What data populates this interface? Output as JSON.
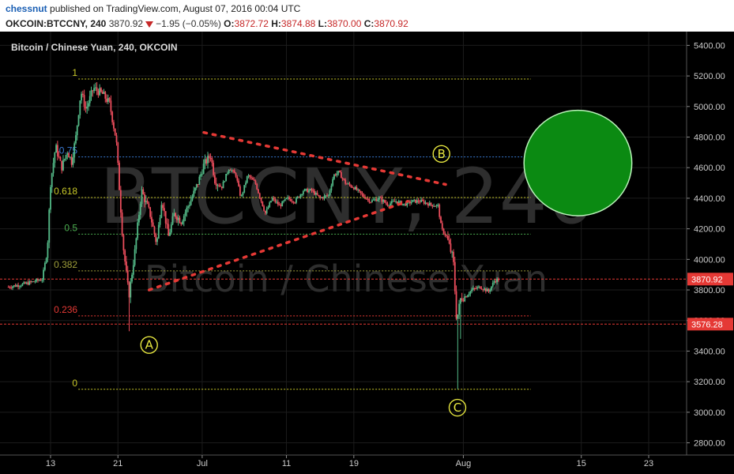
{
  "header": {
    "author": "chessnut",
    "published_text": "published on TradingView.com, August 07, 2016 00:04 UTC"
  },
  "infobar": {
    "symbol": "OKCOIN:BTCCNY, 240",
    "last": "3870.92",
    "change": "−1.95 (−0.05%)",
    "open_label": "O:",
    "open": "3872.72",
    "high_label": "H:",
    "high": "3874.88",
    "low_label": "L:",
    "low": "3870.00",
    "close_label": "C:",
    "close": "3870.92"
  },
  "chart_data": {
    "type": "candlestick",
    "title": "Bitcoin / Chinese Yuan, 240, OKCOIN",
    "watermark_symbol": "BTCCNY, 240",
    "watermark_name": "Bitcoin / Chinese Yuan",
    "ylim": [
      2720,
      5490
    ],
    "y_ticks": [
      "5400.00",
      "5200.00",
      "5000.00",
      "4800.00",
      "4600.00",
      "4400.00",
      "4200.00",
      "4000.00",
      "3800.00",
      "3600.00",
      "3400.00",
      "3200.00",
      "3000.00",
      "2800.00"
    ],
    "x_ticks": [
      {
        "label": "13",
        "day": 13
      },
      {
        "label": "21",
        "day": 21
      },
      {
        "label": "Jul",
        "day": 31
      },
      {
        "label": "11",
        "day": 41
      },
      {
        "label": "19",
        "day": 49
      },
      {
        "label": "Aug",
        "day": 62
      },
      {
        "label": "15",
        "day": 76
      },
      {
        "label": "23",
        "day": 84
      }
    ],
    "x_range_days": [
      7.0,
      88.5
    ],
    "price_labels": [
      {
        "text": "3870.92",
        "value": 3870.92,
        "color": "#e53935"
      },
      {
        "text": "3576.28",
        "value": 3576.28,
        "color": "#e53935"
      }
    ],
    "fib_levels": [
      {
        "label": "1",
        "value": 5180,
        "color": "#c8c828"
      },
      {
        "label": "0.75",
        "value": 4670,
        "color": "#3a7bd5"
      },
      {
        "label": "0.618",
        "value": 4405,
        "color": "#c8c828"
      },
      {
        "label": "0.5",
        "value": 4165,
        "color": "#4caf50"
      },
      {
        "label": "0.382",
        "value": 3925,
        "color": "#9e9e3a"
      },
      {
        "label": "0.236",
        "value": 3630,
        "color": "#e53935"
      },
      {
        "label": "0",
        "value": 3150,
        "color": "#c8c828"
      }
    ],
    "wave_labels": [
      {
        "text": "A",
        "day": 24.7,
        "value": 3440
      },
      {
        "text": "B",
        "day": 59.4,
        "value": 4690
      },
      {
        "text": "C",
        "day": 61.3,
        "value": 3030
      }
    ],
    "trendlines": [
      {
        "from": [
          31.2,
          4830
        ],
        "to": [
          59.9,
          4490
        ]
      },
      {
        "from": [
          24.7,
          3800
        ],
        "to": [
          55.4,
          4380
        ]
      }
    ],
    "target_zone": {
      "center_day": 75.6,
      "center_value": 4630,
      "rx_days": 6.4,
      "ry_value": 345
    },
    "anchors": [
      [
        8,
        3820
      ],
      [
        10,
        3840
      ],
      [
        12,
        3870
      ],
      [
        12.6,
        4050
      ],
      [
        13,
        4500
      ],
      [
        13.6,
        4740
      ],
      [
        14.3,
        4600
      ],
      [
        15,
        4710
      ],
      [
        15.5,
        4640
      ],
      [
        16,
        4800
      ],
      [
        16.6,
        5100
      ],
      [
        17.2,
        4980
      ],
      [
        18.1,
        5120
      ],
      [
        19.2,
        5080
      ],
      [
        20,
        5020
      ],
      [
        20.8,
        4780
      ],
      [
        21.6,
        4100
      ],
      [
        22.3,
        3760
      ],
      [
        23,
        4050
      ],
      [
        23.8,
        4450
      ],
      [
        24.8,
        4300
      ],
      [
        25.6,
        4100
      ],
      [
        26.2,
        4400
      ],
      [
        27,
        4150
      ],
      [
        27.7,
        4300
      ],
      [
        28.5,
        4250
      ],
      [
        29.6,
        4380
      ],
      [
        30.5,
        4500
      ],
      [
        31.2,
        4620
      ],
      [
        32,
        4680
      ],
      [
        32.5,
        4520
      ],
      [
        33.3,
        4470
      ],
      [
        34.2,
        4600
      ],
      [
        35,
        4550
      ],
      [
        35.6,
        4400
      ],
      [
        36.4,
        4550
      ],
      [
        37.3,
        4500
      ],
      [
        37.9,
        4400
      ],
      [
        38.5,
        4300
      ],
      [
        39.3,
        4400
      ],
      [
        40.2,
        4350
      ],
      [
        41.1,
        4400
      ],
      [
        42,
        4380
      ],
      [
        43,
        4450
      ],
      [
        44,
        4450
      ],
      [
        45,
        4400
      ],
      [
        46,
        4420
      ],
      [
        46.6,
        4550
      ],
      [
        47.2,
        4570
      ],
      [
        48,
        4500
      ],
      [
        49,
        4470
      ],
      [
        50,
        4420
      ],
      [
        51,
        4380
      ],
      [
        52,
        4400
      ],
      [
        53,
        4360
      ],
      [
        54,
        4380
      ],
      [
        55,
        4360
      ],
      [
        56,
        4380
      ],
      [
        57,
        4380
      ],
      [
        58,
        4360
      ],
      [
        59,
        4350
      ],
      [
        59.4,
        4200
      ],
      [
        60,
        4150
      ],
      [
        60.8,
        4000
      ],
      [
        61.2,
        3600
      ],
      [
        61.7,
        3750
      ],
      [
        62.3,
        3760
      ],
      [
        63,
        3800
      ],
      [
        64,
        3820
      ],
      [
        65,
        3790
      ],
      [
        65.7,
        3860
      ],
      [
        66.2,
        3870
      ]
    ],
    "dips": [
      {
        "day": 22.3,
        "value": 3530
      },
      {
        "day": 61.3,
        "value": 3150
      },
      {
        "day": 61.6,
        "value": 3480
      }
    ]
  }
}
